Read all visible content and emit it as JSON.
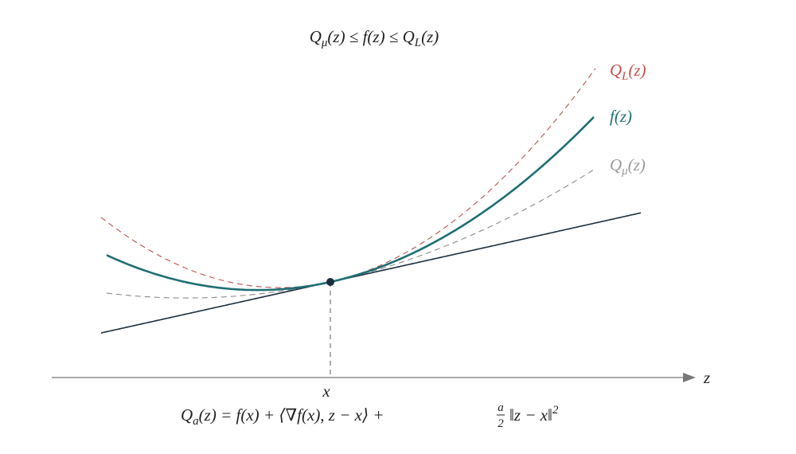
{
  "title": [
    "Q",
    "μ",
    "(z) ≤ f(z) ≤ Q",
    "L",
    "(z)"
  ],
  "curve_labels": {
    "upper": [
      "Q",
      "L",
      "(z)"
    ],
    "function": "f(z)",
    "lower": [
      "Q",
      "μ",
      "(z)"
    ]
  },
  "axis": {
    "point_label": "x",
    "axis_label": "z"
  },
  "formula": [
    "Q",
    "a",
    "(z) = f(x) + ⟨∇f(x), z − x⟩ + ",
    "a",
    "2",
    "‖z − x‖",
    "2"
  ]
}
